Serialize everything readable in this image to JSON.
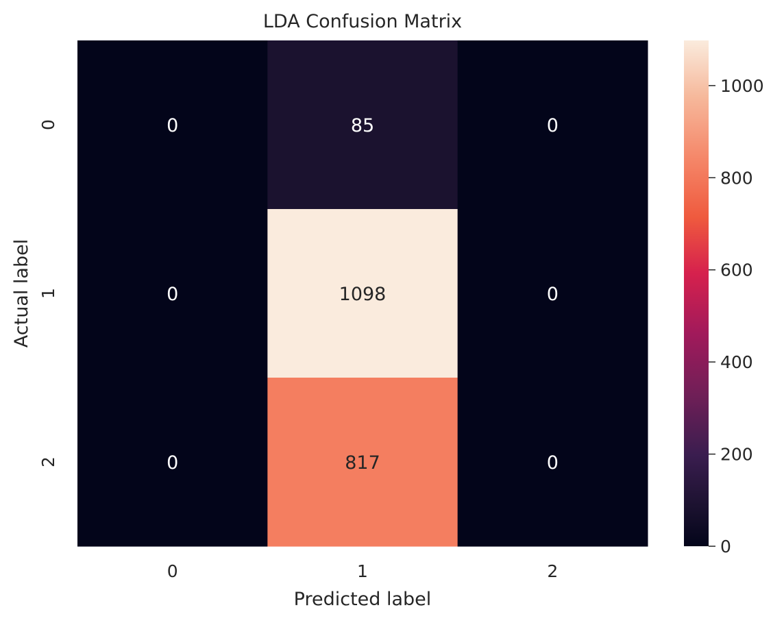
{
  "chart_data": {
    "type": "heatmap",
    "title": "LDA Confusion Matrix",
    "xlabel": "Predicted label",
    "ylabel": "Actual label",
    "x_categories": [
      "0",
      "1",
      "2"
    ],
    "y_categories": [
      "0",
      "1",
      "2"
    ],
    "values": [
      [
        0,
        85,
        0
      ],
      [
        0,
        1098,
        0
      ],
      [
        0,
        817,
        0
      ]
    ],
    "colormap": "rocket",
    "colorbar": {
      "range": [
        0,
        1098
      ],
      "ticks": [
        0,
        200,
        400,
        600,
        800,
        1000
      ],
      "tick_labels": [
        "0",
        "200",
        "400",
        "600",
        "800",
        "1000"
      ]
    },
    "annotation_colors": {
      "on_dark": "#ffffff",
      "on_light": "#262626"
    }
  }
}
